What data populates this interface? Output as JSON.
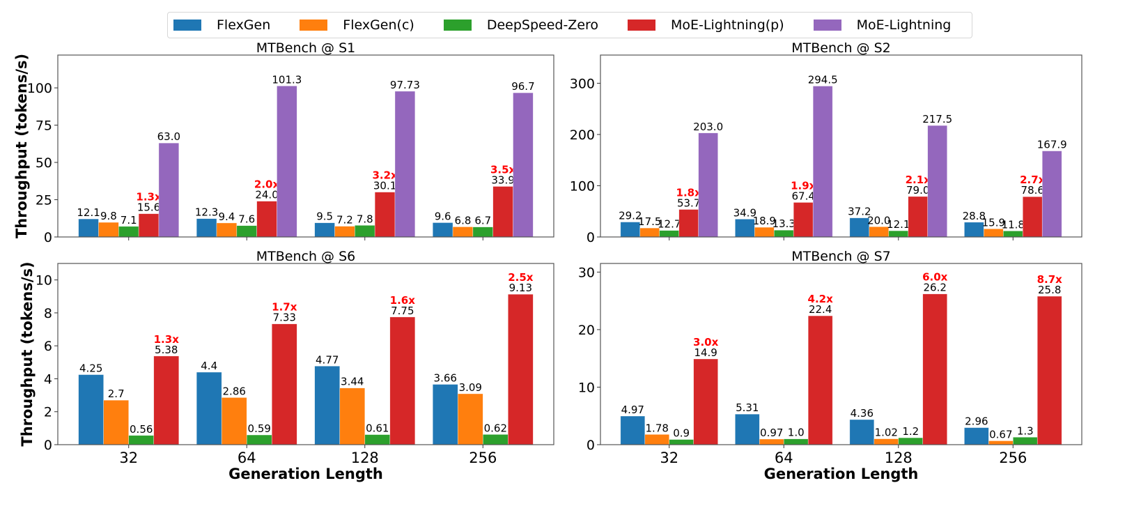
{
  "legend": {
    "placement": "top-center",
    "entries": [
      {
        "name": "FlexGen",
        "color": "#1f77b4"
      },
      {
        "name": "FlexGen(c)",
        "color": "#ff7f0e"
      },
      {
        "name": "DeepSpeed-Zero",
        "color": "#2ca02c"
      },
      {
        "name": "MoE-Lightning(p)",
        "color": "#d62728"
      },
      {
        "name": "MoE-Lightning",
        "color": "#9467bd"
      }
    ]
  },
  "speedup_color": "#ff0000",
  "chart_data": [
    {
      "type": "bar",
      "title": "MTBench @ S1",
      "xlabel": "",
      "ylabel": "Throughput (tokens/s)",
      "categories": [
        "32",
        "64",
        "128",
        "256"
      ],
      "ylim": [
        0,
        122
      ],
      "yticks": [
        0,
        25,
        50,
        75,
        100
      ],
      "grid": false,
      "series": [
        {
          "name": "FlexGen",
          "values": [
            12.1,
            12.3,
            9.5,
            9.6
          ],
          "labels": [
            "12.1",
            "12.3",
            "9.5",
            "9.6"
          ]
        },
        {
          "name": "FlexGen(c)",
          "values": [
            9.8,
            9.4,
            7.2,
            6.8
          ],
          "labels": [
            "9.8",
            "9.4",
            "7.2",
            "6.8"
          ]
        },
        {
          "name": "DeepSpeed-Zero",
          "values": [
            7.1,
            7.6,
            7.8,
            6.7
          ],
          "labels": [
            "7.1",
            "7.6",
            "7.8",
            "6.7"
          ]
        },
        {
          "name": "MoE-Lightning(p)",
          "values": [
            15.6,
            24.0,
            30.1,
            33.9
          ],
          "labels": [
            "15.6",
            "24.0",
            "30.1",
            "33.9"
          ]
        },
        {
          "name": "MoE-Lightning",
          "values": [
            63.0,
            101.3,
            97.73,
            96.7
          ],
          "labels": [
            "63.0",
            "101.3",
            "97.73",
            "96.7"
          ]
        }
      ],
      "speedups": [
        "1.3x",
        "2.0x",
        "3.2x",
        "3.5x"
      ]
    },
    {
      "type": "bar",
      "title": "MTBench @ S2",
      "xlabel": "",
      "ylabel": "",
      "categories": [
        "32",
        "64",
        "128",
        "256"
      ],
      "ylim": [
        0,
        355
      ],
      "yticks": [
        0,
        100,
        200,
        300
      ],
      "grid": false,
      "series": [
        {
          "name": "FlexGen",
          "values": [
            29.2,
            34.9,
            37.2,
            28.8
          ],
          "labels": [
            "29.2",
            "34.9",
            "37.2",
            "28.8"
          ]
        },
        {
          "name": "FlexGen(c)",
          "values": [
            17.5,
            18.9,
            20.0,
            15.9
          ],
          "labels": [
            "17.5",
            "18.9",
            "20.0",
            "15.9"
          ]
        },
        {
          "name": "DeepSpeed-Zero",
          "values": [
            12.7,
            13.3,
            12.1,
            11.8
          ],
          "labels": [
            "12.7",
            "13.3",
            "12.1",
            "11.8"
          ]
        },
        {
          "name": "MoE-Lightning(p)",
          "values": [
            53.7,
            67.4,
            79.0,
            78.6
          ],
          "labels": [
            "53.7",
            "67.4",
            "79.0",
            "78.6"
          ]
        },
        {
          "name": "MoE-Lightning",
          "values": [
            203.0,
            294.5,
            217.5,
            167.9
          ],
          "labels": [
            "203.0",
            "294.5",
            "217.5",
            "167.9"
          ]
        }
      ],
      "speedups": [
        "1.8x",
        "1.9x",
        "2.1x",
        "2.7x"
      ]
    },
    {
      "type": "bar",
      "title": "MTBench @ S6",
      "xlabel": "Generation Length",
      "ylabel": "Throughput (tokens/s)",
      "categories": [
        "32",
        "64",
        "128",
        "256"
      ],
      "ylim": [
        0,
        11
      ],
      "yticks": [
        0,
        2,
        4,
        6,
        8,
        10
      ],
      "grid": false,
      "series": [
        {
          "name": "FlexGen",
          "values": [
            4.25,
            4.4,
            4.77,
            3.66
          ],
          "labels": [
            "4.25",
            "4.4",
            "4.77",
            "3.66"
          ]
        },
        {
          "name": "FlexGen(c)",
          "values": [
            2.7,
            2.86,
            3.44,
            3.09
          ],
          "labels": [
            "2.7",
            "2.86",
            "3.44",
            "3.09"
          ]
        },
        {
          "name": "DeepSpeed-Zero",
          "values": [
            0.56,
            0.59,
            0.61,
            0.62
          ],
          "labels": [
            "0.56",
            "0.59",
            "0.61",
            "0.62"
          ]
        },
        {
          "name": "MoE-Lightning(p)",
          "values": [
            5.38,
            7.33,
            7.75,
            9.13
          ],
          "labels": [
            "5.38",
            "7.33",
            "7.75",
            "9.13"
          ]
        }
      ],
      "speedups": [
        "1.3x",
        "1.7x",
        "1.6x",
        "2.5x"
      ]
    },
    {
      "type": "bar",
      "title": "MTBench @ S7",
      "xlabel": "Generation Length",
      "ylabel": "",
      "categories": [
        "32",
        "64",
        "128",
        "256"
      ],
      "ylim": [
        0,
        31.5
      ],
      "yticks": [
        0,
        10,
        20,
        30
      ],
      "grid": false,
      "series": [
        {
          "name": "FlexGen",
          "values": [
            4.97,
            5.31,
            4.36,
            2.96
          ],
          "labels": [
            "4.97",
            "5.31",
            "4.36",
            "2.96"
          ]
        },
        {
          "name": "FlexGen(c)",
          "values": [
            1.78,
            0.97,
            1.02,
            0.67
          ],
          "labels": [
            "1.78",
            "0.97",
            "1.02",
            "0.67"
          ]
        },
        {
          "name": "DeepSpeed-Zero",
          "values": [
            0.9,
            1.0,
            1.2,
            1.3
          ],
          "labels": [
            "0.9",
            "1.0",
            "1.2",
            "1.3"
          ]
        },
        {
          "name": "MoE-Lightning(p)",
          "values": [
            14.9,
            22.4,
            26.2,
            25.8
          ],
          "labels": [
            "14.9",
            "22.4",
            "26.2",
            "25.8"
          ]
        }
      ],
      "speedups": [
        "3.0x",
        "4.2x",
        "6.0x",
        "8.7x"
      ]
    }
  ]
}
